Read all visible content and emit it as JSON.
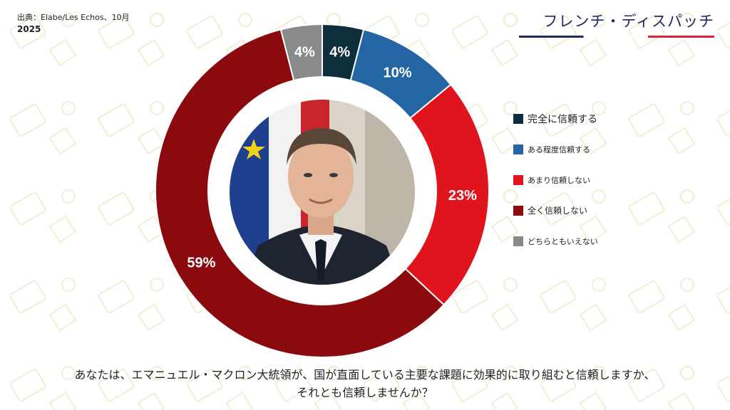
{
  "source": {
    "label": "出典：Elabe/Les Echos、10月",
    "year": "2025"
  },
  "brand": {
    "title": "フレンチ・ディスパッチ"
  },
  "question": {
    "line1": "あなたは、エマニュエル・マクロン大統領が、国が直面している主要な課題に効果的に取り組むと信頼しますか、",
    "line2": "それとも信頼しませんか？"
  },
  "chart_data": {
    "type": "pie",
    "variant": "donut",
    "categories": [
      "完全に信頼する",
      "ある程度信頼する",
      "あまり信頼しない",
      "全く信頼しない",
      "どちらともいえない"
    ],
    "values": [
      4,
      10,
      23,
      59,
      4
    ],
    "data_labels": [
      "4%",
      "10%",
      "23%",
      "59%",
      "4%"
    ],
    "colors": [
      "#0e2e3c",
      "#2466a4",
      "#e0141c",
      "#8b0a0d",
      "#8a8a8a"
    ],
    "legend_position": "right",
    "center_image": "portrait-photo"
  }
}
